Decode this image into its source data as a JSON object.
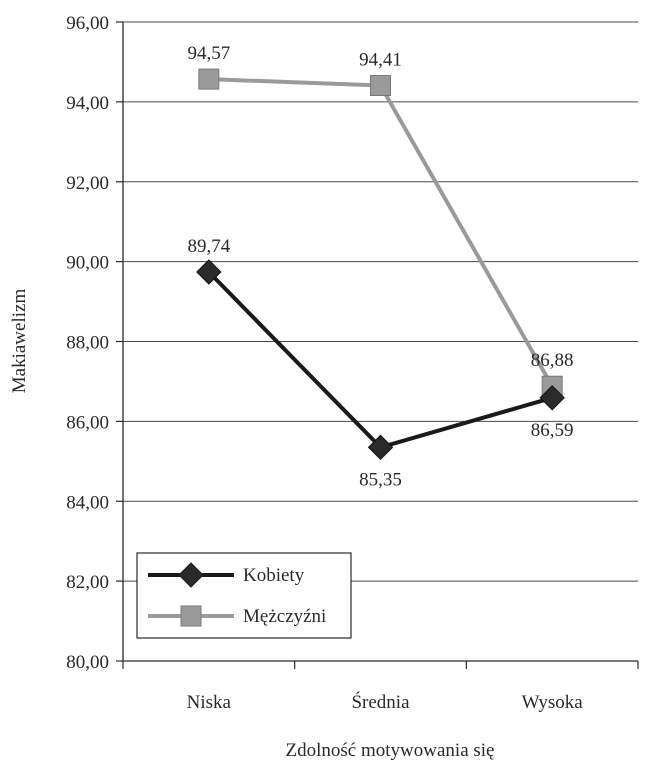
{
  "chart_data": {
    "type": "line",
    "categories": [
      "Niska",
      "Średnia",
      "Wysoka"
    ],
    "series": [
      {
        "name": "Kobiety",
        "values": [
          89.74,
          85.35,
          86.59
        ],
        "labels": [
          "89,74",
          "85,35",
          "86,59"
        ],
        "color": "#1a1a1a",
        "marker": "diamond"
      },
      {
        "name": "Mężczyźni",
        "values": [
          94.57,
          94.41,
          86.88
        ],
        "labels": [
          "94,57",
          "94,41",
          "86,88"
        ],
        "color": "#9a9a9a",
        "marker": "square"
      }
    ],
    "xlabel": "Zdolność motywowania się",
    "ylabel": "Makiawelizm",
    "ylim": [
      80,
      96
    ],
    "yticks": [
      "80,00",
      "82,00",
      "84,00",
      "86,00",
      "88,00",
      "90,00",
      "92,00",
      "94,00",
      "96,00"
    ],
    "grid": true,
    "legend_position": "bottom-left"
  }
}
